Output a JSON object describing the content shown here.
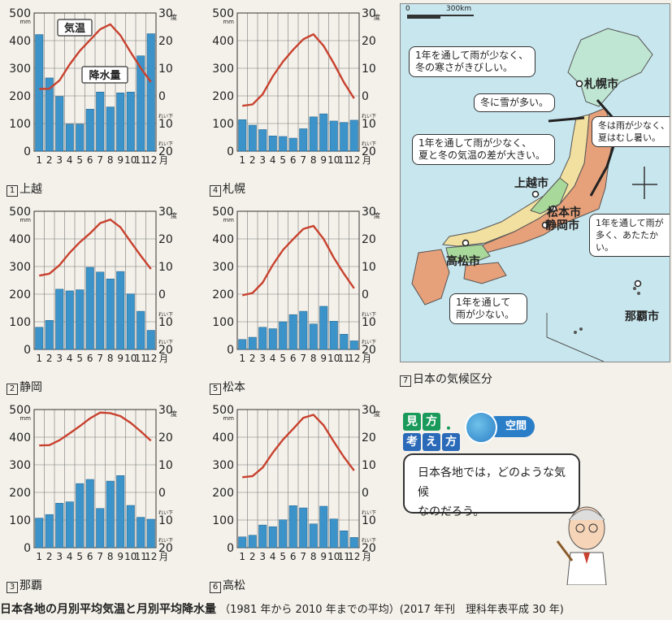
{
  "axis_labels": {
    "precip_unit": "mm",
    "temp_unit": "度",
    "below_zero": "れい下",
    "month_suffix": "月",
    "temp_ticks": [
      "30",
      "20",
      "10",
      "0",
      "10",
      "20"
    ],
    "precip_ticks": [
      "500",
      "400",
      "300",
      "200",
      "100",
      "0"
    ]
  },
  "annotations": {
    "temp": "気温",
    "precip": "降水量"
  },
  "colors": {
    "bars": "#3c93c9",
    "line": "#c8412e",
    "grid": "#777777"
  },
  "chart_data": [
    {
      "id": "jouetsu",
      "num": "1",
      "title": "上越",
      "type": "bar+line",
      "ylim_precip": [
        0,
        500
      ],
      "ylim_temp": [
        -20,
        30
      ],
      "x": [
        "1",
        "2",
        "3",
        "4",
        "5",
        "6",
        "7",
        "8",
        "9",
        "10",
        "11",
        "12"
      ],
      "precip": [
        422,
        265,
        198,
        98,
        98,
        152,
        214,
        160,
        211,
        214,
        345,
        425
      ],
      "temp": [
        2.5,
        2.6,
        5.6,
        11.4,
        16.3,
        20.2,
        24.1,
        25.9,
        21.9,
        15.8,
        10.1,
        5.0
      ]
    },
    {
      "id": "sapporo",
      "num": "4",
      "title": "札幌",
      "type": "bar+line",
      "ylim_precip": [
        0,
        500
      ],
      "ylim_temp": [
        -20,
        30
      ],
      "x": [
        "1",
        "2",
        "3",
        "4",
        "5",
        "6",
        "7",
        "8",
        "9",
        "10",
        "11",
        "12"
      ],
      "precip": [
        114,
        94,
        78,
        55,
        53,
        47,
        81,
        124,
        135,
        109,
        104,
        112
      ],
      "temp": [
        -3.6,
        -3.1,
        0.6,
        7.1,
        12.4,
        16.7,
        20.5,
        22.3,
        18.1,
        11.8,
        4.9,
        -0.9
      ]
    },
    {
      "id": "shizuoka",
      "num": "2",
      "title": "静岡",
      "type": "bar+line",
      "ylim_precip": [
        0,
        500
      ],
      "ylim_temp": [
        -20,
        30
      ],
      "x": [
        "1",
        "2",
        "3",
        "4",
        "5",
        "6",
        "7",
        "8",
        "9",
        "10",
        "11",
        "12"
      ],
      "precip": [
        80,
        105,
        218,
        212,
        216,
        297,
        280,
        255,
        282,
        201,
        138,
        69
      ],
      "temp": [
        6.7,
        7.4,
        10.5,
        15.0,
        18.8,
        22.0,
        25.7,
        27.0,
        24.2,
        19.0,
        13.9,
        9.1
      ]
    },
    {
      "id": "matsumoto",
      "num": "5",
      "title": "松本",
      "type": "bar+line",
      "ylim_precip": [
        0,
        500
      ],
      "ylim_temp": [
        -20,
        30
      ],
      "x": [
        "1",
        "2",
        "3",
        "4",
        "5",
        "6",
        "7",
        "8",
        "9",
        "10",
        "11",
        "12"
      ],
      "precip": [
        36,
        44,
        80,
        75,
        100,
        126,
        138,
        92,
        156,
        102,
        55,
        31
      ],
      "temp": [
        -0.4,
        0.4,
        4.2,
        10.6,
        16.0,
        19.9,
        23.6,
        24.7,
        20.0,
        13.2,
        7.4,
        2.1
      ]
    },
    {
      "id": "naha",
      "num": "3",
      "title": "那覇",
      "type": "bar+line",
      "ylim_precip": [
        0,
        500
      ],
      "ylim_temp": [
        -20,
        30
      ],
      "x": [
        "1",
        "2",
        "3",
        "4",
        "5",
        "6",
        "7",
        "8",
        "9",
        "10",
        "11",
        "12"
      ],
      "precip": [
        107,
        120,
        161,
        166,
        232,
        247,
        142,
        241,
        261,
        153,
        110,
        103
      ],
      "temp": [
        17.0,
        17.1,
        18.9,
        21.4,
        24.0,
        26.8,
        28.9,
        28.7,
        27.6,
        25.2,
        22.1,
        18.7
      ]
    },
    {
      "id": "takamatsu",
      "num": "6",
      "title": "高松",
      "type": "bar+line",
      "ylim_precip": [
        0,
        500
      ],
      "ylim_temp": [
        -20,
        30
      ],
      "x": [
        "1",
        "2",
        "3",
        "4",
        "5",
        "6",
        "7",
        "8",
        "9",
        "10",
        "11",
        "12"
      ],
      "precip": [
        39,
        45,
        82,
        76,
        101,
        152,
        144,
        86,
        150,
        104,
        61,
        37
      ],
      "temp": [
        5.5,
        5.9,
        9.0,
        14.4,
        19.1,
        23.0,
        27.0,
        28.1,
        24.3,
        18.4,
        12.8,
        7.9
      ]
    }
  ],
  "map": {
    "num": "7",
    "caption": "日本の気候区分",
    "scale_labels": [
      "0",
      "300km"
    ],
    "notes": [
      "1年を通して雨が少なく、\n冬の寒さがきびしい。",
      "冬に雪が多い。",
      "冬は雨が少なく、\n夏はむし暑い。",
      "1年を通して雨が少なく、\n夏と冬の気温の差が大きい。",
      "1年を通して雨が\n多く、あたたかい。",
      "1年を通して\n雨が少ない。"
    ],
    "cities": [
      "札幌市",
      "上越市",
      "松本市",
      "静岡市",
      "高松市",
      "那覇市"
    ]
  },
  "mikata": {
    "chars": [
      "見",
      "方",
      "考",
      "え",
      "方"
    ],
    "sep": "・",
    "tag": "空間",
    "question": "日本各地では，どのような気候\nなのだろう。"
  },
  "footer": {
    "title": "日本各地の月別平均気温と月別平均降水量",
    "note": "（1981 年から 2010 年までの平均）(2017 年刊　理科年表平成 30 年)"
  }
}
